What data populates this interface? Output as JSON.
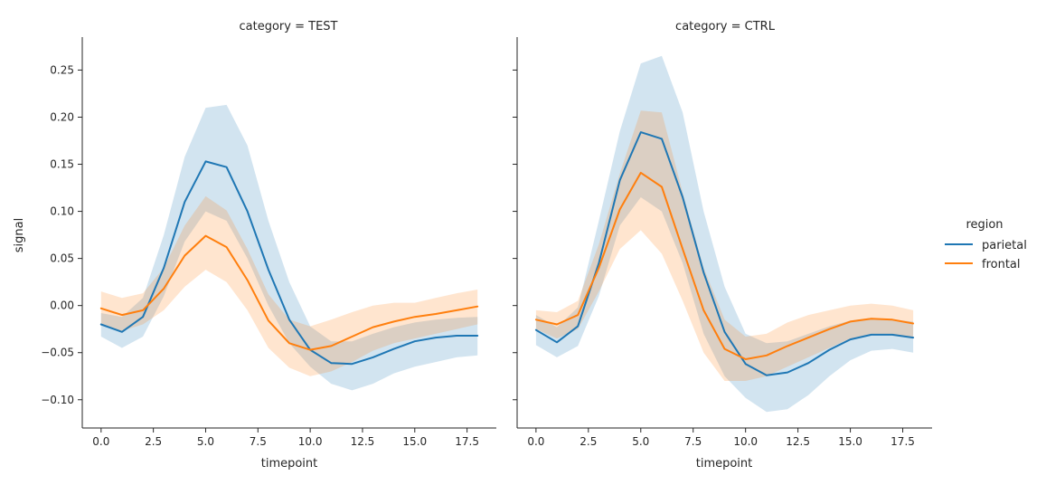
{
  "chart_data": {
    "type": "line",
    "ylabel": "signal",
    "xlabel": "timepoint",
    "xlim": [
      -0.9,
      18.9
    ],
    "ylim": [
      -0.13,
      0.285
    ],
    "xticks": [
      0.0,
      2.5,
      5.0,
      7.5,
      10.0,
      12.5,
      15.0,
      17.5
    ],
    "xtick_labels": [
      "0.0",
      "2.5",
      "5.0",
      "7.5",
      "10.0",
      "12.5",
      "15.0",
      "17.5"
    ],
    "yticks": [
      -0.1,
      -0.05,
      0.0,
      0.05,
      0.1,
      0.15,
      0.2,
      0.25
    ],
    "ytick_labels": [
      "−0.10",
      "−0.05",
      "0.00",
      "0.05",
      "0.10",
      "0.15",
      "0.20",
      "0.25"
    ],
    "x": [
      0,
      1,
      2,
      3,
      4,
      5,
      6,
      7,
      8,
      9,
      10,
      11,
      12,
      13,
      14,
      15,
      16,
      17,
      18
    ],
    "legend": {
      "title": "region",
      "placement": "right",
      "entries": [
        "parietal",
        "frontal"
      ]
    },
    "colors": {
      "parietal": "#1f77b4",
      "frontal": "#ff7f0e"
    },
    "panels": [
      {
        "title": "category = TEST",
        "series": [
          {
            "name": "parietal",
            "values": [
              -0.02,
              -0.028,
              -0.012,
              0.04,
              0.11,
              0.153,
              0.147,
              0.1,
              0.038,
              -0.015,
              -0.047,
              -0.061,
              -0.062,
              -0.055,
              -0.046,
              -0.038,
              -0.034,
              -0.032,
              -0.032
            ],
            "lower": [
              -0.033,
              -0.045,
              -0.033,
              0.01,
              0.068,
              0.1,
              0.09,
              0.05,
              0.0,
              -0.04,
              -0.065,
              -0.083,
              -0.09,
              -0.083,
              -0.072,
              -0.065,
              -0.06,
              -0.055,
              -0.053
            ],
            "upper": [
              -0.008,
              -0.012,
              0.008,
              0.075,
              0.158,
              0.21,
              0.213,
              0.17,
              0.09,
              0.025,
              -0.022,
              -0.038,
              -0.038,
              -0.03,
              -0.023,
              -0.018,
              -0.015,
              -0.013,
              -0.012
            ]
          },
          {
            "name": "frontal",
            "values": [
              -0.003,
              -0.01,
              -0.005,
              0.018,
              0.053,
              0.074,
              0.062,
              0.027,
              -0.016,
              -0.04,
              -0.047,
              -0.043,
              -0.033,
              -0.023,
              -0.017,
              -0.012,
              -0.009,
              -0.005,
              -0.001
            ],
            "lower": [
              -0.02,
              -0.027,
              -0.02,
              -0.005,
              0.02,
              0.038,
              0.025,
              -0.005,
              -0.045,
              -0.066,
              -0.075,
              -0.07,
              -0.06,
              -0.048,
              -0.04,
              -0.035,
              -0.03,
              -0.025,
              -0.02
            ],
            "upper": [
              0.015,
              0.008,
              0.013,
              0.04,
              0.085,
              0.116,
              0.101,
              0.06,
              0.012,
              -0.015,
              -0.022,
              -0.015,
              -0.007,
              0.0,
              0.003,
              0.003,
              0.008,
              0.013,
              0.017
            ]
          }
        ]
      },
      {
        "title": "category = CTRL",
        "series": [
          {
            "name": "parietal",
            "values": [
              -0.026,
              -0.039,
              -0.022,
              0.045,
              0.133,
              0.184,
              0.177,
              0.115,
              0.035,
              -0.028,
              -0.062,
              -0.074,
              -0.071,
              -0.061,
              -0.047,
              -0.036,
              -0.031,
              -0.031,
              -0.034
            ],
            "lower": [
              -0.042,
              -0.055,
              -0.043,
              0.01,
              0.085,
              0.115,
              0.1,
              0.045,
              -0.03,
              -0.075,
              -0.098,
              -0.113,
              -0.11,
              -0.095,
              -0.075,
              -0.058,
              -0.048,
              -0.046,
              -0.05
            ],
            "upper": [
              -0.01,
              -0.023,
              -0.002,
              0.09,
              0.185,
              0.257,
              0.265,
              0.205,
              0.1,
              0.02,
              -0.03,
              -0.04,
              -0.038,
              -0.03,
              -0.022,
              -0.016,
              -0.013,
              -0.015,
              -0.017
            ]
          },
          {
            "name": "frontal",
            "values": [
              -0.015,
              -0.02,
              -0.01,
              0.04,
              0.102,
              0.141,
              0.126,
              0.06,
              -0.005,
              -0.046,
              -0.057,
              -0.053,
              -0.043,
              -0.034,
              -0.025,
              -0.017,
              -0.014,
              -0.015,
              -0.019
            ],
            "lower": [
              -0.025,
              -0.035,
              -0.025,
              0.015,
              0.06,
              0.08,
              0.055,
              0.005,
              -0.05,
              -0.08,
              -0.08,
              -0.075,
              -0.065,
              -0.055,
              -0.045,
              -0.035,
              -0.03,
              -0.032,
              -0.035
            ],
            "upper": [
              -0.005,
              -0.007,
              0.005,
              0.065,
              0.14,
              0.207,
              0.205,
              0.12,
              0.04,
              -0.015,
              -0.033,
              -0.03,
              -0.018,
              -0.01,
              -0.005,
              0.0,
              0.002,
              0.0,
              -0.005
            ]
          }
        ]
      }
    ]
  }
}
